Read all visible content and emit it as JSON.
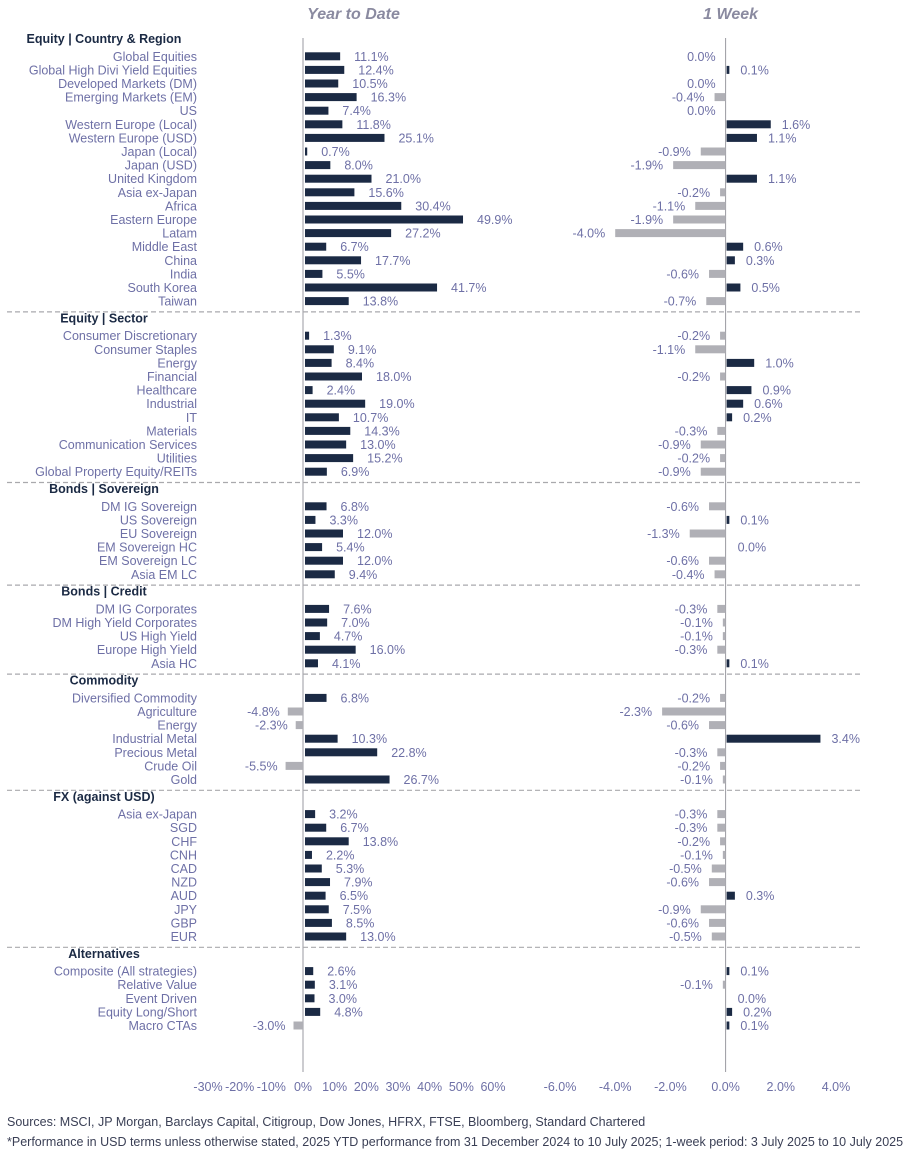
{
  "colors": {
    "positive": "#1b2a44",
    "negative": "#b0b0b6",
    "text": "#6e70a6",
    "heading": "#1b2a44",
    "divider": "#a9a9ad"
  },
  "chart_data": {
    "type": "bar",
    "orientation": "horizontal",
    "panels": [
      {
        "title": "Year to Date",
        "xlim": [
          -30,
          60
        ],
        "ticks": [
          -30,
          -20,
          -10,
          0,
          10,
          20,
          30,
          40,
          50,
          60
        ],
        "unit": "%"
      },
      {
        "title": "1 Week",
        "xlim": [
          -6,
          4
        ],
        "ticks": [
          -6,
          -4,
          -2,
          0,
          2,
          4
        ],
        "unit": "%"
      }
    ],
    "sections": [
      {
        "title": "Equity | Country & Region",
        "rows": [
          {
            "label": "Global Equities",
            "ytd": 11.1,
            "wk": 0.0
          },
          {
            "label": "Global High Divi Yield Equities",
            "ytd": 12.4,
            "wk": 0.1
          },
          {
            "label": "Developed Markets (DM)",
            "ytd": 10.5,
            "wk": 0.0
          },
          {
            "label": "Emerging Markets (EM)",
            "ytd": 16.3,
            "wk": -0.4
          },
          {
            "label": "US",
            "ytd": 7.4,
            "wk": 0.0
          },
          {
            "label": "Western Europe (Local)",
            "ytd": 11.8,
            "wk": 1.6
          },
          {
            "label": "Western Europe (USD)",
            "ytd": 25.1,
            "wk": 1.1
          },
          {
            "label": "Japan (Local)",
            "ytd": 0.7,
            "wk": -0.9
          },
          {
            "label": "Japan (USD)",
            "ytd": 8.0,
            "wk": -1.9
          },
          {
            "label": "United Kingdom",
            "ytd": 21.0,
            "wk": 1.1
          },
          {
            "label": "Asia ex-Japan",
            "ytd": 15.6,
            "wk": -0.2
          },
          {
            "label": "Africa",
            "ytd": 30.4,
            "wk": -1.1
          },
          {
            "label": "Eastern Europe",
            "ytd": 49.9,
            "wk": -1.9
          },
          {
            "label": "Latam",
            "ytd": 27.2,
            "wk": -4.0
          },
          {
            "label": "Middle East",
            "ytd": 6.7,
            "wk": 0.6
          },
          {
            "label": "China",
            "ytd": 17.7,
            "wk": 0.3
          },
          {
            "label": "India",
            "ytd": 5.5,
            "wk": -0.6
          },
          {
            "label": "South Korea",
            "ytd": 41.7,
            "wk": 0.5
          },
          {
            "label": "Taiwan",
            "ytd": 13.8,
            "wk": -0.7
          }
        ]
      },
      {
        "title": "Equity | Sector",
        "rows": [
          {
            "label": "Consumer Discretionary",
            "ytd": 1.3,
            "wk": -0.2
          },
          {
            "label": "Consumer Staples",
            "ytd": 9.1,
            "wk": -1.1
          },
          {
            "label": "Energy",
            "ytd": 8.4,
            "wk": 1.0
          },
          {
            "label": "Financial",
            "ytd": 18.0,
            "wk": -0.2
          },
          {
            "label": "Healthcare",
            "ytd": 2.4,
            "wk": 0.9
          },
          {
            "label": "Industrial",
            "ytd": 19.0,
            "wk": 0.6
          },
          {
            "label": "IT",
            "ytd": 10.7,
            "wk": 0.2
          },
          {
            "label": "Materials",
            "ytd": 14.3,
            "wk": -0.3
          },
          {
            "label": "Communication Services",
            "ytd": 13.0,
            "wk": -0.9
          },
          {
            "label": "Utilities",
            "ytd": 15.2,
            "wk": -0.2
          },
          {
            "label": "Global Property Equity/REITs",
            "ytd": 6.9,
            "wk": -0.9
          }
        ]
      },
      {
        "title": "Bonds | Sovereign",
        "rows": [
          {
            "label": "DM IG Sovereign",
            "ytd": 6.8,
            "wk": -0.6
          },
          {
            "label": "US Sovereign",
            "ytd": 3.3,
            "wk": 0.1
          },
          {
            "label": "EU Sovereign",
            "ytd": 12.0,
            "wk": -1.3
          },
          {
            "label": "EM Sovereign HC",
            "ytd": 5.4,
            "wk": 0.0
          },
          {
            "label": "EM Sovereign LC",
            "ytd": 12.0,
            "wk": -0.6
          },
          {
            "label": "Asia EM LC",
            "ytd": 9.4,
            "wk": -0.4
          }
        ]
      },
      {
        "title": "Bonds | Credit",
        "rows": [
          {
            "label": "DM IG Corporates",
            "ytd": 7.6,
            "wk": -0.3
          },
          {
            "label": "DM High Yield Corporates",
            "ytd": 7.0,
            "wk": -0.1
          },
          {
            "label": "US High Yield",
            "ytd": 4.7,
            "wk": -0.1
          },
          {
            "label": "Europe High Yield",
            "ytd": 16.0,
            "wk": -0.3
          },
          {
            "label": "Asia HC",
            "ytd": 4.1,
            "wk": 0.1
          }
        ]
      },
      {
        "title": "Commodity",
        "rows": [
          {
            "label": "Diversified Commodity",
            "ytd": 6.8,
            "wk": -0.2
          },
          {
            "label": "Agriculture",
            "ytd": -4.8,
            "wk": -2.3
          },
          {
            "label": "Energy",
            "ytd": -2.3,
            "wk": -0.6
          },
          {
            "label": "Industrial Metal",
            "ytd": 10.3,
            "wk": 3.4
          },
          {
            "label": "Precious Metal",
            "ytd": 22.8,
            "wk": -0.3
          },
          {
            "label": "Crude Oil",
            "ytd": -5.5,
            "wk": -0.2
          },
          {
            "label": "Gold",
            "ytd": 26.7,
            "wk": -0.1
          }
        ]
      },
      {
        "title": "FX (against USD)",
        "rows": [
          {
            "label": "Asia ex-Japan",
            "ytd": 3.2,
            "wk": -0.3
          },
          {
            "label": "SGD",
            "ytd": 6.7,
            "wk": -0.3
          },
          {
            "label": "CHF",
            "ytd": 13.8,
            "wk": -0.2
          },
          {
            "label": "CNH",
            "ytd": 2.2,
            "wk": -0.1
          },
          {
            "label": "CAD",
            "ytd": 5.3,
            "wk": -0.5
          },
          {
            "label": "NZD",
            "ytd": 7.9,
            "wk": -0.6
          },
          {
            "label": "AUD",
            "ytd": 6.5,
            "wk": 0.3
          },
          {
            "label": "JPY",
            "ytd": 7.5,
            "wk": -0.9
          },
          {
            "label": "GBP",
            "ytd": 8.5,
            "wk": -0.6
          },
          {
            "label": "EUR",
            "ytd": 13.0,
            "wk": -0.5
          }
        ]
      },
      {
        "title": "Alternatives",
        "rows": [
          {
            "label": "Composite (All strategies)",
            "ytd": 2.6,
            "wk": 0.1
          },
          {
            "label": "Relative Value",
            "ytd": 3.1,
            "wk": -0.1
          },
          {
            "label": "Event Driven",
            "ytd": 3.0,
            "wk": 0.0
          },
          {
            "label": "Equity Long/Short",
            "ytd": 4.8,
            "wk": 0.2
          },
          {
            "label": "Macro CTAs",
            "ytd": -3.0,
            "wk": 0.1
          }
        ]
      }
    ]
  },
  "footnotes": {
    "sources": "Sources: MSCI, JP Morgan, Barclays Capital, Citigroup, Dow Jones, HFRX, FTSE, Bloomberg, Standard Chartered",
    "note": "*Performance in USD terms unless otherwise stated, 2025 YTD performance from 31 December 2024 to 10 July 2025; 1-week period: 3 July 2025 to 10 July 2025"
  }
}
